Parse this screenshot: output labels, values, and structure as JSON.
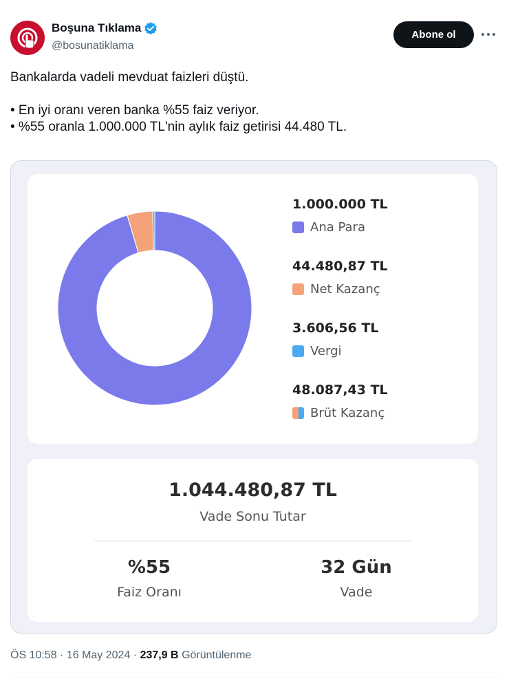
{
  "author": {
    "display_name": "Boşuna Tıklama",
    "handle": "@bosunatiklama",
    "verified": true,
    "avatar_color": "#c8102e"
  },
  "actions": {
    "follow_label": "Abone ol"
  },
  "tweet": {
    "lines": [
      "Bankalarda vadeli mevduat faizleri düştü.",
      "",
      "• En iyi oranı veren banka %55 faiz veriyor.",
      "• %55 oranla 1.000.000 TL'nin aylık faiz getirisi 44.480 TL."
    ]
  },
  "chart_data": {
    "type": "pie",
    "segments": [
      {
        "label": "Ana Para",
        "value": 1000000,
        "color": "#7b7aeb"
      },
      {
        "label": "Net Kazanç",
        "value": 44480.87,
        "color": "#f4a27a"
      },
      {
        "label": "Vergi",
        "value": 3606.56,
        "color": "#4aaaf0"
      }
    ],
    "legend": [
      {
        "value_text": "1.000.000 TL",
        "label": "Ana Para",
        "color": "#7b7aeb"
      },
      {
        "value_text": "44.480,87 TL",
        "label": "Net Kazanç",
        "color": "#f4a27a"
      },
      {
        "value_text": "3.606,56 TL",
        "label": "Vergi",
        "color": "#4aaaf0"
      },
      {
        "value_text": "48.087,43 TL",
        "label": "Brüt Kazanç",
        "colors": [
          "#f4a27a",
          "#4aaaf0"
        ]
      }
    ]
  },
  "summary": {
    "total_amount": "1.044.480,87 TL",
    "total_label": "Vade Sonu Tutar",
    "rate_value": "%55",
    "rate_label": "Faiz Oranı",
    "term_value": "32 Gün",
    "term_label": "Vade"
  },
  "meta": {
    "time": "ÖS 10:58",
    "separator": " · ",
    "date": "16 May 2024",
    "views": "237,9 B",
    "views_label": "Görüntülenme"
  }
}
